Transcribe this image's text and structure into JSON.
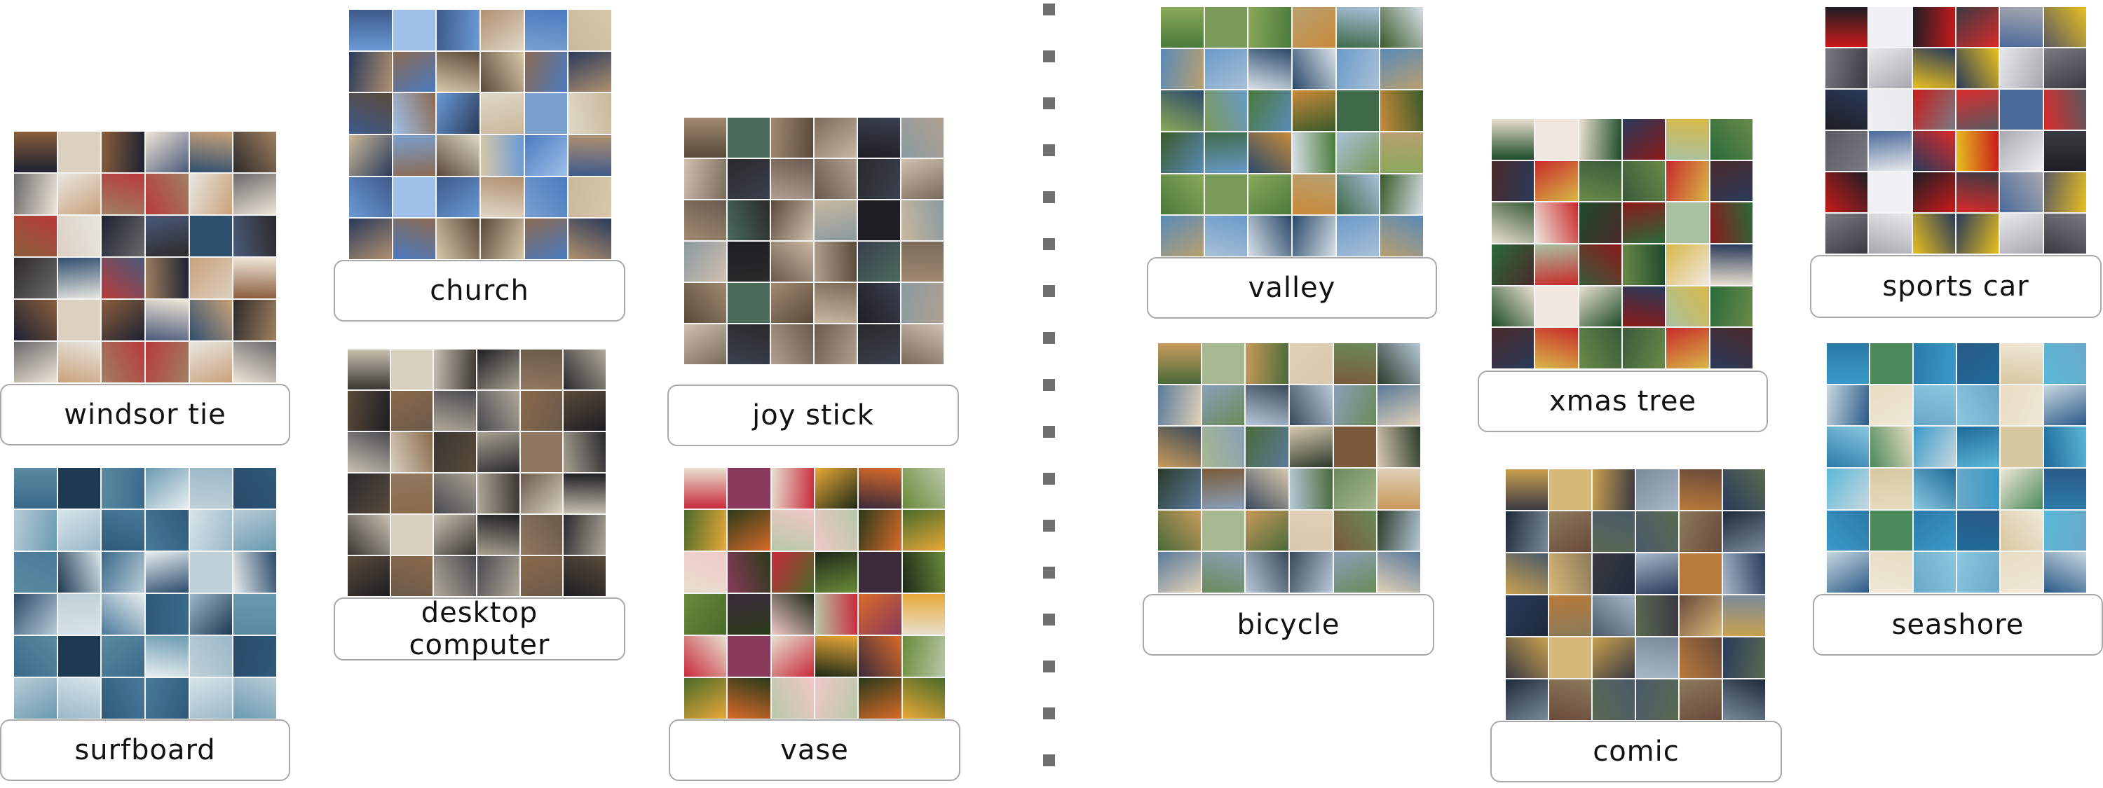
{
  "categories": {
    "windsor_tie": {
      "label": "windsor tie",
      "palette": [
        "#1c2233",
        "#e8e6e1",
        "#8b5e3c",
        "#2d2a2a",
        "#c9a27a",
        "#4a5a7a",
        "#b83a3a",
        "#dcd0c0",
        "#6a6a6a",
        "#f0e6d8",
        "#2f4f6f",
        "#a08060"
      ]
    },
    "church": {
      "label": "church",
      "palette": [
        "#6a9ad6",
        "#8b6a52",
        "#3e5a8a",
        "#c9b89a",
        "#4a7ac0",
        "#e0d8c8",
        "#5a4a3a",
        "#9fc0e8",
        "#2a3a5a",
        "#b09070",
        "#7aa0d0",
        "#d8c8a8"
      ]
    },
    "joy_stick": {
      "label": "joy stick",
      "palette": [
        "#5a4a3a",
        "#2a2a2a",
        "#a08a70",
        "#8a9aa0",
        "#3a4050",
        "#c8b8a0",
        "#6a5a50",
        "#4a6a5a",
        "#d0c0b0",
        "#7a6a5a",
        "#1e1e24",
        "#b0a090"
      ]
    },
    "surfboard": {
      "label": "surfboard",
      "palette": [
        "#3a6a8a",
        "#d8e4ea",
        "#5a8aa0",
        "#2a4a6a",
        "#9ab8c8",
        "#e8eef0",
        "#4a7a9a",
        "#1e3a52",
        "#b8ccd6",
        "#6a9ab0",
        "#c0d0d8",
        "#2e5a78"
      ]
    },
    "desktop_computer": {
      "label": "desktop\ncomputer",
      "line1": "desktop",
      "line2": "computer",
      "palette": [
        "#3a3632",
        "#8a6a4a",
        "#c8c0b0",
        "#2a2a2e",
        "#6a5a4a",
        "#a8a090",
        "#4a4a50",
        "#d8d0c0",
        "#5a4a3a",
        "#1e1e22",
        "#907860",
        "#b0a898"
      ]
    },
    "vase": {
      "label": "vase",
      "palette": [
        "#c82a3a",
        "#2a3a1a",
        "#e8e0d0",
        "#6a8a3a",
        "#d86a2a",
        "#1e2a18",
        "#f0c8c8",
        "#8a3a5a",
        "#4a6a2a",
        "#e8a838",
        "#3a2a3a",
        "#b8c8a8"
      ]
    },
    "valley": {
      "label": "valley",
      "palette": [
        "#4a7a3a",
        "#6a9ac8",
        "#8aa85a",
        "#3a5a2a",
        "#a8c0d8",
        "#c88a3a",
        "#2a4a6a",
        "#7a9a5a",
        "#5a8ab8",
        "#b8a070",
        "#3e6a4a",
        "#d8e0e8"
      ]
    },
    "xmas_tree": {
      "label": "xmas tree",
      "palette": [
        "#1e4a2a",
        "#c82a2a",
        "#e8e0d0",
        "#2a6a3a",
        "#d8b848",
        "#8a1a1a",
        "#3a5a3a",
        "#f0e8e0",
        "#4a2a2a",
        "#2a3a5a",
        "#a8c0a0",
        "#6a8a4a"
      ]
    },
    "sports_car": {
      "label": "sports car",
      "palette": [
        "#c81a1a",
        "#e8e8ec",
        "#1e1e24",
        "#5a5a62",
        "#a8a8b0",
        "#d82a2a",
        "#2a3a5a",
        "#f0f0f4",
        "#7a7a82",
        "#3a3a42",
        "#4a6a9a",
        "#e8c020"
      ]
    },
    "bicycle": {
      "label": "bicycle",
      "palette": [
        "#4a6a3a",
        "#8aa0b8",
        "#c89a5a",
        "#2a3a2a",
        "#6a8a5a",
        "#d8c8b0",
        "#3a4a5a",
        "#a8b890",
        "#5a7a9a",
        "#e0d0b8",
        "#7a5a3a",
        "#b8c8d8"
      ]
    },
    "comic": {
      "label": "comic",
      "palette": [
        "#3a3a42",
        "#8a7a5a",
        "#c8a050",
        "#2a3a5a",
        "#6a4a3a",
        "#a8b8c8",
        "#4a5a6a",
        "#d8b878",
        "#1e2a3a",
        "#7a8a9a",
        "#b87a3a",
        "#5a6a52"
      ]
    },
    "seashore": {
      "label": "seashore",
      "palette": [
        "#3a9ac8",
        "#e8dcc0",
        "#2a7aa8",
        "#5ab8d8",
        "#f0e8d8",
        "#1e6a98",
        "#8ac8e0",
        "#4a8a5a",
        "#c8d8e0",
        "#2a5a88",
        "#d8c8a0",
        "#6aa8c8"
      ]
    }
  }
}
